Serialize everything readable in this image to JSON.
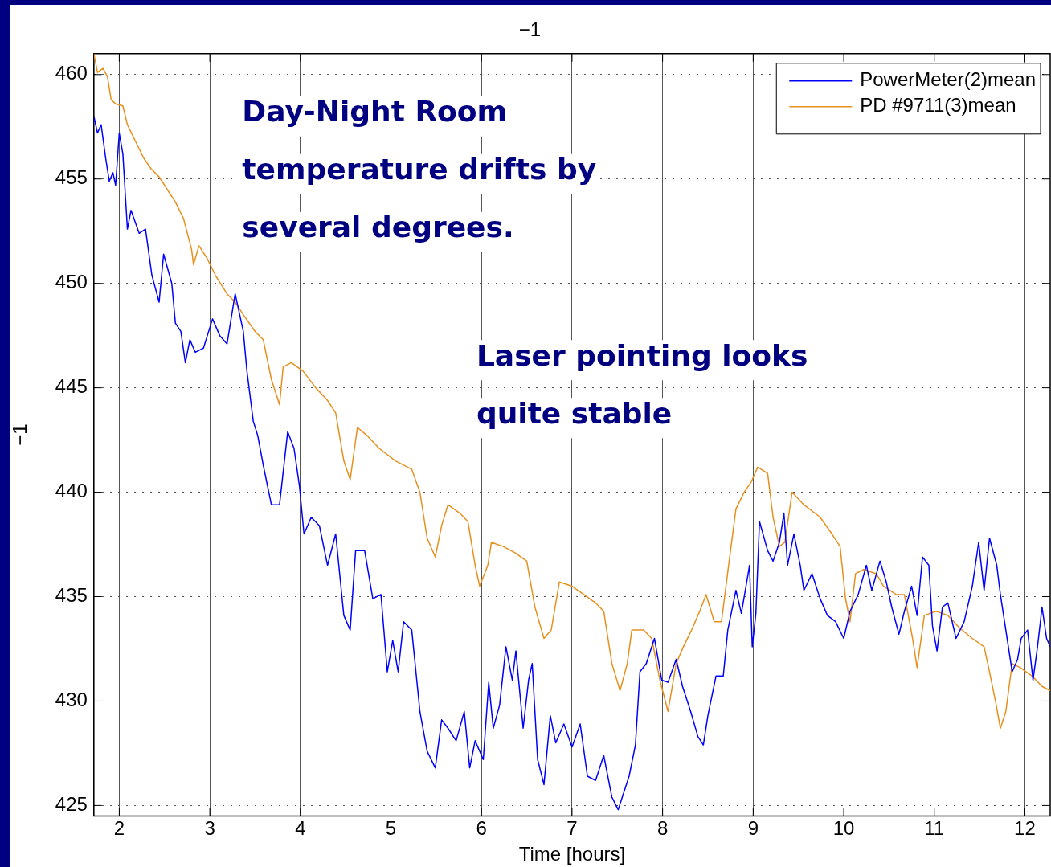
{
  "chart_data": {
    "type": "line",
    "title": "−1",
    "xlabel": "Time [hours]",
    "ylabel": "−1",
    "annotations": [
      "Day-Night Room temperature drifts by several degrees.",
      "Laser pointing looks quite stable"
    ],
    "xlim": [
      1.72,
      12.28
    ],
    "xticks": [
      2,
      3,
      4,
      5,
      6,
      7,
      8,
      9,
      10,
      11,
      12
    ],
    "ylim": [
      424.5,
      461
    ],
    "yticks": [
      425,
      430,
      435,
      440,
      445,
      450,
      455,
      460
    ],
    "grid": true,
    "legend": "top right",
    "marker": "none",
    "line_style": "solid",
    "series": [
      {
        "name": "PowerMeter(2)mean",
        "color": "#0000ff",
        "x": [
          1.72,
          1.76,
          1.8,
          1.85,
          1.89,
          1.93,
          1.96,
          2.0,
          2.04,
          2.09,
          2.13,
          2.22,
          2.29,
          2.36,
          2.44,
          2.49,
          2.58,
          2.62,
          2.68,
          2.73,
          2.78,
          2.84,
          2.93,
          3.03,
          3.11,
          3.19,
          3.28,
          3.37,
          3.41,
          3.48,
          3.53,
          3.59,
          3.68,
          3.77,
          3.86,
          3.93,
          3.99,
          4.04,
          4.12,
          4.21,
          4.3,
          4.39,
          4.48,
          4.55,
          4.61,
          4.71,
          4.8,
          4.89,
          4.96,
          5.02,
          5.08,
          5.14,
          5.23,
          5.32,
          5.4,
          5.49,
          5.56,
          5.63,
          5.72,
          5.81,
          5.87,
          5.93,
          6.02,
          6.08,
          6.13,
          6.2,
          6.27,
          6.34,
          6.38,
          6.46,
          6.52,
          6.56,
          6.62,
          6.69,
          6.76,
          6.82,
          6.91,
          7.0,
          7.09,
          7.17,
          7.26,
          7.35,
          7.44,
          7.51,
          7.57,
          7.63,
          7.7,
          7.75,
          7.82,
          7.91,
          7.99,
          8.06,
          8.15,
          8.22,
          8.31,
          8.39,
          8.45,
          8.5,
          8.59,
          8.67,
          8.72,
          8.81,
          8.87,
          8.96,
          8.99,
          9.03,
          9.07,
          9.16,
          9.22,
          9.29,
          9.34,
          9.38,
          9.45,
          9.52,
          9.56,
          9.65,
          9.74,
          9.82,
          9.91,
          10.0,
          10.07,
          10.16,
          10.25,
          10.31,
          10.4,
          10.47,
          10.53,
          10.61,
          10.67,
          10.75,
          10.81,
          10.87,
          10.94,
          10.98,
          11.03,
          11.09,
          11.15,
          11.24,
          11.33,
          11.42,
          11.49,
          11.55,
          11.61,
          11.69,
          11.73,
          11.79,
          11.86,
          11.92,
          11.96,
          12.03,
          12.09,
          12.14,
          12.19,
          12.24,
          12.28
        ],
        "values": [
          458.0,
          457.2,
          457.6,
          456.0,
          454.9,
          455.3,
          454.7,
          457.2,
          456.2,
          452.6,
          453.5,
          452.4,
          452.6,
          450.4,
          449.1,
          451.4,
          450.0,
          448.1,
          447.7,
          446.2,
          447.3,
          446.7,
          446.9,
          448.3,
          447.5,
          447.1,
          449.5,
          447.7,
          445.8,
          443.4,
          442.7,
          441.3,
          439.4,
          439.4,
          442.9,
          442.1,
          440.3,
          438.0,
          438.8,
          438.4,
          436.5,
          438.0,
          434.1,
          433.4,
          437.2,
          437.2,
          434.9,
          435.1,
          431.4,
          432.9,
          431.4,
          433.8,
          433.4,
          429.5,
          427.6,
          426.8,
          429.1,
          428.7,
          428.1,
          429.5,
          426.8,
          428.1,
          427.2,
          430.9,
          428.7,
          429.8,
          432.6,
          431.0,
          432.4,
          428.7,
          431.0,
          431.8,
          427.2,
          426.0,
          429.3,
          428.0,
          428.9,
          427.8,
          428.9,
          426.4,
          426.2,
          427.4,
          425.4,
          424.8,
          425.6,
          426.4,
          427.9,
          431.4,
          431.8,
          433.0,
          431.0,
          430.9,
          432.0,
          430.7,
          429.5,
          428.3,
          427.9,
          429.3,
          431.2,
          431.2,
          433.4,
          435.3,
          434.2,
          436.5,
          432.6,
          434.2,
          438.6,
          437.2,
          436.7,
          437.6,
          439.0,
          436.5,
          438.0,
          436.5,
          435.3,
          436.1,
          434.9,
          434.1,
          433.8,
          433.0,
          434.3,
          435.1,
          436.5,
          435.3,
          436.7,
          435.7,
          434.5,
          433.2,
          434.3,
          435.5,
          434.1,
          436.9,
          436.5,
          433.6,
          432.4,
          434.5,
          434.7,
          433.0,
          433.8,
          435.5,
          437.6,
          435.3,
          437.8,
          436.5,
          435.1,
          433.4,
          431.4,
          432.0,
          433.0,
          433.4,
          431.0,
          432.6,
          434.5,
          433.0,
          432.6
        ]
      },
      {
        "name": "PD #9711(3)mean",
        "color": "#e8901e",
        "x": [
          1.72,
          1.76,
          1.82,
          1.87,
          1.91,
          1.96,
          2.04,
          2.09,
          2.18,
          2.27,
          2.35,
          2.44,
          2.53,
          2.62,
          2.71,
          2.8,
          2.82,
          2.88,
          2.97,
          3.06,
          3.19,
          3.28,
          3.37,
          3.5,
          3.59,
          3.68,
          3.77,
          3.81,
          3.9,
          4.03,
          4.17,
          4.3,
          4.39,
          4.48,
          4.55,
          4.63,
          4.74,
          4.87,
          5.05,
          5.23,
          5.32,
          5.4,
          5.49,
          5.56,
          5.63,
          5.76,
          5.85,
          5.93,
          5.98,
          6.07,
          6.11,
          6.24,
          6.37,
          6.5,
          6.59,
          6.69,
          6.77,
          6.86,
          7.0,
          7.13,
          7.26,
          7.35,
          7.44,
          7.53,
          7.61,
          7.66,
          7.79,
          7.88,
          7.97,
          8.06,
          8.15,
          8.23,
          8.32,
          8.41,
          8.48,
          8.57,
          8.65,
          8.75,
          8.81,
          8.9,
          8.98,
          9.05,
          9.16,
          9.22,
          9.29,
          9.35,
          9.43,
          9.56,
          9.74,
          9.87,
          9.96,
          10.02,
          10.07,
          10.13,
          10.22,
          10.36,
          10.44,
          10.58,
          10.67,
          10.76,
          10.81,
          10.89,
          11.02,
          11.15,
          11.28,
          11.42,
          11.55,
          11.61,
          11.68,
          11.73,
          11.79,
          11.86,
          11.95,
          12.08,
          12.19,
          12.28
        ],
        "values": [
          461.0,
          460.1,
          460.3,
          459.9,
          458.8,
          458.6,
          458.5,
          457.6,
          456.8,
          456.0,
          455.5,
          455.1,
          454.5,
          453.9,
          453.1,
          451.6,
          450.9,
          451.8,
          451.2,
          450.4,
          449.5,
          449.1,
          448.5,
          447.7,
          447.3,
          445.4,
          444.2,
          446.0,
          446.2,
          445.8,
          445.0,
          444.4,
          443.8,
          441.5,
          440.6,
          443.1,
          442.7,
          442.1,
          441.5,
          441.1,
          440.0,
          437.8,
          436.9,
          438.4,
          439.4,
          439.0,
          438.6,
          436.5,
          435.5,
          436.5,
          437.6,
          437.4,
          437.1,
          436.7,
          434.5,
          433.0,
          433.4,
          435.7,
          435.5,
          435.1,
          434.7,
          434.3,
          431.8,
          430.5,
          431.8,
          433.4,
          433.4,
          433.0,
          431.0,
          429.5,
          431.8,
          432.6,
          433.4,
          434.3,
          435.1,
          433.8,
          433.8,
          437.2,
          439.2,
          440.0,
          440.5,
          441.2,
          440.9,
          438.8,
          437.4,
          437.6,
          440.0,
          439.4,
          438.8,
          438.0,
          437.4,
          434.9,
          433.8,
          436.1,
          436.3,
          436.1,
          435.5,
          435.1,
          435.1,
          433.0,
          431.6,
          434.1,
          434.3,
          434.1,
          433.5,
          433.0,
          432.6,
          431.4,
          429.9,
          428.7,
          429.5,
          431.8,
          431.6,
          431.2,
          430.7,
          430.5
        ]
      }
    ]
  }
}
